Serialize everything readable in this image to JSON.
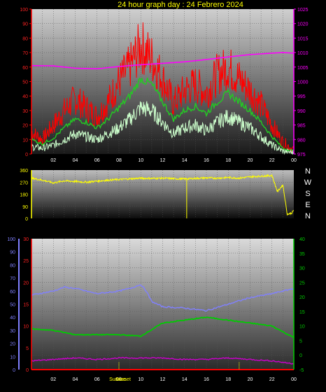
{
  "header": {
    "title": "24 hour graph day : 24 Febrero 2024"
  },
  "colors": {
    "title": "#ffff00",
    "wind_speed": "#ff0000",
    "wind_avg": "#22cc22",
    "wind_gust_low": "#ccffcc",
    "pressure": "#ff00ff",
    "wind_dir": "#ffff00",
    "humidity": "#8080ff",
    "temperature": "#00cc00",
    "dewpoint": "#cc00cc",
    "rain": "#ff0000",
    "sun_marker": "#ffff00"
  },
  "chart_data": [
    {
      "type": "line",
      "name": "wind-and-pressure",
      "x_ticks": [
        "02",
        "04",
        "06",
        "08",
        "10",
        "12",
        "14",
        "16",
        "18",
        "20",
        "22",
        "00"
      ],
      "left_axis": {
        "ticks": [
          "0",
          "10",
          "20",
          "30",
          "40",
          "50",
          "60",
          "70",
          "80",
          "90",
          "100"
        ],
        "ylim": [
          0,
          100
        ]
      },
      "right_axis": {
        "ticks": [
          "975",
          "980",
          "985",
          "990",
          "995",
          "1000",
          "1005",
          "1010",
          "1015",
          "1020",
          "1025"
        ],
        "ylim": [
          975,
          1025
        ]
      },
      "series": [
        {
          "key": "speed",
          "x": [
            0,
            1,
            2,
            3,
            4,
            5,
            6,
            7,
            8,
            9,
            10,
            11,
            12,
            13,
            14,
            15,
            16,
            17,
            18,
            19,
            20,
            21,
            22,
            23,
            24
          ],
          "values": [
            15,
            10,
            20,
            30,
            38,
            32,
            26,
            36,
            50,
            60,
            75,
            66,
            52,
            35,
            44,
            48,
            42,
            55,
            60,
            52,
            44,
            34,
            20,
            8,
            3
          ]
        },
        {
          "key": "avg",
          "x": [
            0,
            1,
            2,
            3,
            4,
            5,
            6,
            7,
            8,
            9,
            10,
            11,
            12,
            13,
            14,
            15,
            16,
            17,
            18,
            19,
            20,
            21,
            22,
            23,
            24
          ],
          "values": [
            10,
            7,
            11,
            18,
            24,
            22,
            18,
            24,
            32,
            40,
            52,
            48,
            36,
            24,
            30,
            33,
            28,
            36,
            42,
            36,
            30,
            22,
            12,
            4,
            2
          ]
        },
        {
          "key": "low",
          "x": [
            0,
            1,
            2,
            3,
            4,
            5,
            6,
            7,
            8,
            9,
            10,
            11,
            12,
            13,
            14,
            15,
            16,
            17,
            18,
            19,
            20,
            21,
            22,
            23,
            24
          ],
          "values": [
            5,
            4,
            6,
            10,
            14,
            12,
            10,
            14,
            18,
            24,
            32,
            30,
            22,
            14,
            18,
            20,
            16,
            22,
            26,
            22,
            18,
            12,
            6,
            2,
            1
          ]
        },
        {
          "key": "pressure",
          "x": [
            0,
            2,
            4,
            6,
            8,
            10,
            12,
            14,
            16,
            18,
            20,
            22,
            23,
            24
          ],
          "values": [
            1005.5,
            1005.4,
            1004.6,
            1004.4,
            1005.2,
            1005.8,
            1006.3,
            1006.8,
            1007.6,
            1008.5,
            1009.3,
            1009.8,
            1010,
            1009.8
          ]
        }
      ]
    },
    {
      "type": "line",
      "name": "wind-direction",
      "x_ticks": [],
      "left_axis": {
        "ticks": [
          "0",
          "90",
          "180",
          "270",
          "360"
        ],
        "ylim": [
          0,
          360
        ]
      },
      "compass": [
        "N",
        "W",
        "S",
        "E",
        "N"
      ],
      "series": [
        {
          "key": "direction",
          "x": [
            0,
            1,
            2,
            3,
            4,
            5,
            6,
            7,
            8,
            9,
            10,
            11,
            12,
            13,
            14,
            15,
            16,
            17,
            18,
            19,
            20,
            21,
            22,
            22.5,
            23,
            23.4,
            23.8,
            24
          ],
          "values": [
            300,
            285,
            265,
            280,
            275,
            270,
            278,
            285,
            290,
            295,
            300,
            298,
            300,
            296,
            294,
            298,
            302,
            300,
            305,
            300,
            310,
            315,
            320,
            200,
            250,
            30,
            40,
            60
          ]
        }
      ]
    },
    {
      "type": "line",
      "name": "temperature-humidity-rain",
      "x_ticks": [
        "02",
        "04",
        "06",
        "08",
        "10",
        "12",
        "14",
        "16",
        "18",
        "20",
        "22",
        "00"
      ],
      "humidity_axis": {
        "ticks": [
          "0",
          "10",
          "20",
          "30",
          "40",
          "50",
          "60",
          "70",
          "80",
          "90",
          "100"
        ],
        "ylim": [
          0,
          100
        ]
      },
      "rain_axis": {
        "ticks": [
          "0",
          "5",
          "10",
          "15",
          "20",
          "25",
          "30"
        ],
        "ylim": [
          0,
          30
        ]
      },
      "temp_axis": {
        "ticks": [
          "-5",
          "0",
          "5",
          "10",
          "15",
          "20",
          "25",
          "30",
          "35",
          "40"
        ],
        "ylim": [
          -5,
          40
        ]
      },
      "sun_labels": [
        "Sunrise",
        "Sunset"
      ],
      "sun_x": [
        8.0,
        19.0
      ],
      "series": [
        {
          "key": "humidity",
          "x": [
            0,
            2,
            3,
            4,
            6,
            8,
            9,
            10,
            10.5,
            11,
            12,
            14,
            16,
            18,
            20,
            22,
            24
          ],
          "values": [
            57,
            60,
            63,
            62,
            58,
            60,
            62,
            65,
            60,
            52,
            48,
            47,
            45,
            50,
            55,
            58,
            62
          ]
        },
        {
          "key": "temperature",
          "x": [
            0,
            2,
            4,
            6,
            8,
            10,
            12,
            14,
            16,
            18,
            20,
            22,
            23,
            24
          ],
          "values": [
            9,
            8.5,
            7,
            7,
            7,
            6.5,
            11,
            12,
            13,
            12,
            11,
            10,
            8,
            6
          ]
        },
        {
          "key": "dewpoint",
          "x": [
            0,
            2,
            4,
            6,
            8,
            10,
            12,
            14,
            16,
            18,
            20,
            22,
            24
          ],
          "values": [
            -2,
            -1.5,
            -1,
            -1.5,
            -1,
            -1,
            -1,
            -1.5,
            -1.5,
            -1,
            -1.5,
            -2,
            -3
          ]
        },
        {
          "key": "rain",
          "x": [
            0,
            24
          ],
          "values": [
            0,
            0
          ]
        }
      ]
    }
  ]
}
